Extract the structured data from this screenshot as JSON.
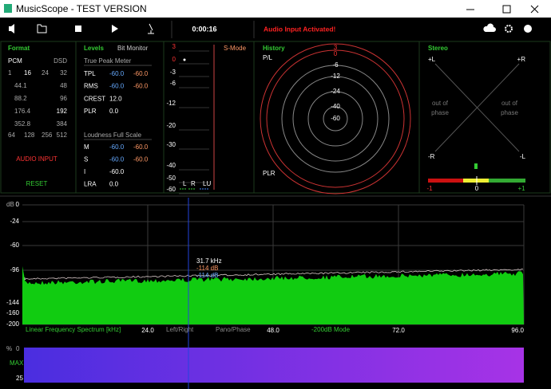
{
  "window": {
    "title": "MusicScope - TEST VERSION"
  },
  "toolbar": {
    "time": "0:00:16",
    "status": "Audio Input Activated!"
  },
  "format": {
    "title": "Format",
    "pcm": "PCM",
    "dsd": "DSD",
    "bits": [
      "1",
      "16",
      "24",
      "32"
    ],
    "rates": [
      [
        "44.1",
        "48"
      ],
      [
        "88.2",
        "96"
      ],
      [
        "176.4",
        "192"
      ],
      [
        "352.8",
        "384"
      ]
    ],
    "dsd_rates": [
      "64",
      "128",
      "256",
      "512"
    ],
    "input": "AUDIO INPUT",
    "reset": "RESET"
  },
  "levels": {
    "title": "Levels",
    "bit_monitor": "Bit Monitor",
    "true_peak": "True Peak Meter",
    "rows": [
      [
        "TPL",
        "-60.0",
        "-60.0"
      ],
      [
        "RMS",
        "-60.0",
        "-60.0"
      ],
      [
        "CREST",
        "12.0"
      ],
      [
        "PLR",
        "0.0"
      ]
    ],
    "loudness": "Loudness Full Scale",
    "lrows": [
      [
        "M",
        "-60.0",
        "-60.0"
      ],
      [
        "S",
        "-60.0",
        "-60.0"
      ],
      [
        "I",
        "-60.0"
      ],
      [
        "LRA",
        "0.0"
      ]
    ]
  },
  "meter": {
    "scale": [
      "3",
      "0",
      "-3",
      "-6",
      "-12",
      "-20",
      "-30",
      "-40",
      "-50",
      "-60"
    ],
    "mode": "S-Mode",
    "channels": [
      "L",
      "R",
      "LU"
    ]
  },
  "history": {
    "title": "History",
    "top_label": "P/L",
    "bottom_label": "PLR",
    "rings": [
      "3",
      "0",
      "-6",
      "-12",
      "-24",
      "-40",
      "-60"
    ]
  },
  "stereo": {
    "title": "Stereo",
    "corners": [
      "+L",
      "+R",
      "-R",
      "-L"
    ],
    "left_note": [
      "out of",
      "phase"
    ],
    "right_note": [
      "out of",
      "phase"
    ],
    "scale": [
      "-1",
      "0",
      "+1"
    ]
  },
  "spectrum": {
    "unit": "dB",
    "yticks": [
      "0",
      "-24",
      "-60",
      "-96",
      "-144",
      "-160",
      "-200"
    ],
    "xticks": [
      "24.0",
      "48.0",
      "72.0",
      "96.0"
    ],
    "modes": [
      "Linear Frequency Spectrum [kHz]",
      "Left/Right",
      "Pano/Phase",
      "-200dB Mode"
    ],
    "cursor": [
      "31.7 kHz",
      "-114 dB",
      "-114 dB"
    ]
  },
  "bottom": {
    "labels": [
      "%",
      "0",
      "MAX",
      "25"
    ]
  }
}
